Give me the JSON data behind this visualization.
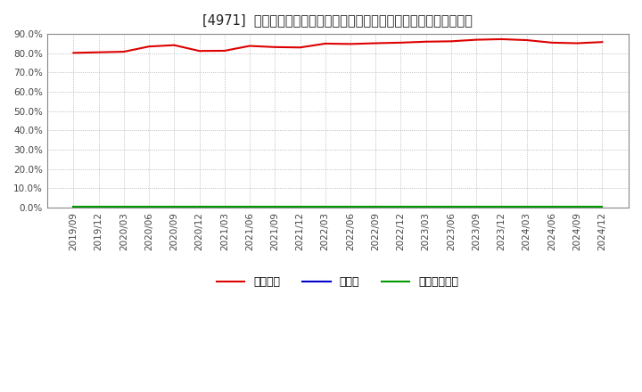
{
  "title": "[4971]  自己資本、のれん、繰延税金資産の総資産に対する比率の推移",
  "x_labels": [
    "2019/09",
    "2019/12",
    "2020/03",
    "2020/06",
    "2020/09",
    "2020/12",
    "2021/03",
    "2021/06",
    "2021/09",
    "2021/12",
    "2022/03",
    "2022/06",
    "2022/09",
    "2022/12",
    "2023/03",
    "2023/06",
    "2023/09",
    "2023/12",
    "2024/03",
    "2024/06",
    "2024/09",
    "2024/12"
  ],
  "jikoshihon": [
    80.2,
    80.5,
    80.8,
    83.5,
    84.2,
    81.2,
    81.3,
    83.8,
    83.2,
    83.0,
    85.0,
    84.8,
    85.2,
    85.5,
    86.0,
    86.2,
    87.0,
    87.3,
    86.8,
    85.5,
    85.2,
    85.8
  ],
  "noren": [
    0.05,
    0.05,
    0.05,
    0.05,
    0.05,
    0.05,
    0.05,
    0.05,
    0.05,
    0.05,
    0.05,
    0.05,
    0.05,
    0.05,
    0.05,
    0.05,
    0.05,
    0.05,
    0.05,
    0.05,
    0.05,
    0.05
  ],
  "kurinobezeikin": [
    0.3,
    0.3,
    0.3,
    0.3,
    0.3,
    0.3,
    0.3,
    0.3,
    0.3,
    0.3,
    0.3,
    0.3,
    0.3,
    0.3,
    0.3,
    0.3,
    0.3,
    0.3,
    0.3,
    0.3,
    0.3,
    0.3
  ],
  "jikoshihon_color": "#dd0000",
  "noren_color": "#0000cc",
  "kurinobezeikin_color": "#009900",
  "background_color": "#ffffff",
  "plot_bg_color": "#ffffff",
  "grid_color": "#aaaaaa",
  "ylim": [
    0,
    90
  ],
  "yticks": [
    0,
    10,
    20,
    30,
    40,
    50,
    60,
    70,
    80,
    90
  ],
  "legend_labels": [
    "自己資本",
    "のれん",
    "繰延税金資産"
  ]
}
